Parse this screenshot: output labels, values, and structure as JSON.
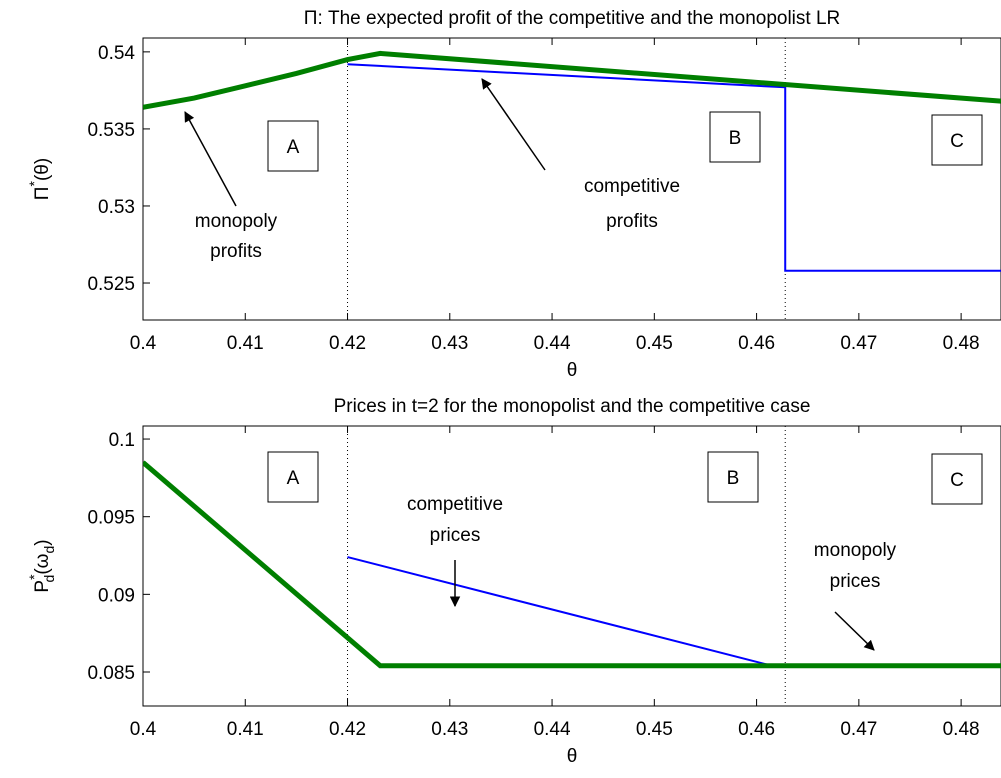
{
  "chart_data": [
    {
      "type": "line",
      "title": "Π: The expected profit of the competitive and the monopolist LR",
      "xlabel": "θ",
      "ylabel": [
        "Π",
        "*",
        "(θ)"
      ],
      "xlim": [
        0.4,
        0.4839
      ],
      "ylim": [
        0.5226,
        0.5409
      ],
      "xticks": [
        0.4,
        0.41,
        0.42,
        0.43,
        0.44,
        0.45,
        0.46,
        0.47,
        0.48
      ],
      "yticks": [
        0.525,
        0.53,
        0.535,
        0.54
      ],
      "vlines": [
        0.42,
        0.4628
      ],
      "regions": [
        "A",
        "B",
        "C"
      ],
      "annotations": [
        [
          "monopoly",
          "profits"
        ],
        [
          "competitive",
          "profits"
        ]
      ],
      "series": [
        {
          "name": "competitive",
          "color": "#0000ff",
          "width": 2,
          "x": [
            0.42,
            0.4628,
            0.4628,
            0.4839
          ],
          "values": [
            0.5392,
            0.5377,
            0.5258,
            0.5258
          ]
        },
        {
          "name": "monopoly",
          "color": "#007f00",
          "width": 5,
          "x": [
            0.4,
            0.405,
            0.41,
            0.415,
            0.42,
            0.4232,
            0.4839
          ],
          "values": [
            0.5364,
            0.537,
            0.5378,
            0.5386,
            0.5395,
            0.5399,
            0.5368
          ]
        }
      ]
    },
    {
      "type": "line",
      "title": "Prices in t=2 for the monopolist and the competitive case",
      "xlabel": "θ",
      "ylabel": [
        "P",
        "*",
        "d",
        "(ω",
        "d",
        ")"
      ],
      "xlim": [
        0.4,
        0.4839
      ],
      "ylim": [
        0.08281,
        0.10084
      ],
      "xticks": [
        0.4,
        0.41,
        0.42,
        0.43,
        0.44,
        0.45,
        0.46,
        0.47,
        0.48
      ],
      "yticks": [
        0.085,
        0.09,
        0.095,
        0.1
      ],
      "vlines": [
        0.42,
        0.4628
      ],
      "regions": [
        "A",
        "B",
        "C"
      ],
      "annotations": [
        [
          "competitive",
          "prices"
        ],
        [
          "monopoly",
          "prices"
        ]
      ],
      "series": [
        {
          "name": "competitive",
          "color": "#0000ff",
          "width": 2,
          "x": [
            0.42,
            0.4615,
            0.4839
          ],
          "values": [
            0.0924,
            0.0854,
            0.0854
          ]
        },
        {
          "name": "monopoly",
          "color": "#007f00",
          "width": 5,
          "x": [
            0.4,
            0.4232,
            0.4839
          ],
          "values": [
            0.0985,
            0.0854,
            0.0854
          ]
        }
      ]
    }
  ]
}
